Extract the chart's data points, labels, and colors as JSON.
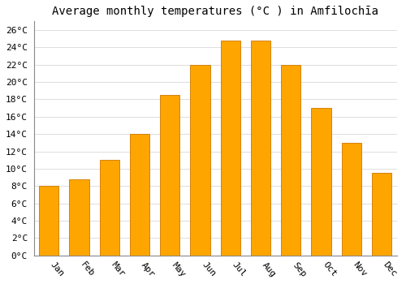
{
  "title": "Average monthly temperatures (°C ) in Amfilochīa",
  "months": [
    "Jan",
    "Feb",
    "Mar",
    "Apr",
    "May",
    "Jun",
    "Jul",
    "Aug",
    "Sep",
    "Oct",
    "Nov",
    "Dec"
  ],
  "values": [
    8.0,
    8.8,
    11.0,
    14.0,
    18.5,
    22.0,
    24.8,
    24.8,
    22.0,
    17.0,
    13.0,
    9.5
  ],
  "bar_color": "#FFA500",
  "bar_edge_color": "#CC7700",
  "ylim": [
    0,
    27
  ],
  "yticks": [
    0,
    2,
    4,
    6,
    8,
    10,
    12,
    14,
    16,
    18,
    20,
    22,
    24,
    26
  ],
  "background_color": "#FFFFFF",
  "grid_color": "#DDDDDD",
  "title_fontsize": 10,
  "tick_fontsize": 8,
  "font_family": "monospace"
}
